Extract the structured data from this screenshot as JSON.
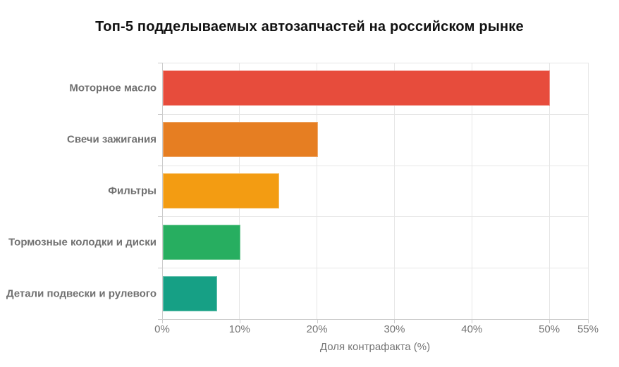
{
  "title": "Топ-5 подделываемых автозапчастей на российском рынке",
  "chart_data": {
    "type": "bar",
    "orientation": "horizontal",
    "title": "Топ-5 подделываемых автозапчастей на российском рынке",
    "categories": [
      "Моторное масло",
      "Свечи зажигания",
      "Фильтры",
      "Тормозные колодки и диски",
      "Детали подвески и рулевого"
    ],
    "values": [
      50,
      20,
      15,
      10,
      7
    ],
    "unit": "%",
    "bar_colors": [
      "#e74c3c",
      "#e67e22",
      "#f39c12",
      "#27ae60",
      "#16a085"
    ],
    "xlabel": "Доля контрафакта (%)",
    "ylabel": "",
    "xlim": [
      0,
      55
    ],
    "xticks": [
      0,
      10,
      20,
      30,
      40,
      50,
      55
    ],
    "xtick_labels": [
      "0%",
      "10%",
      "20%",
      "30%",
      "40%",
      "50%",
      "55%"
    ],
    "grid": true,
    "legend": false
  }
}
